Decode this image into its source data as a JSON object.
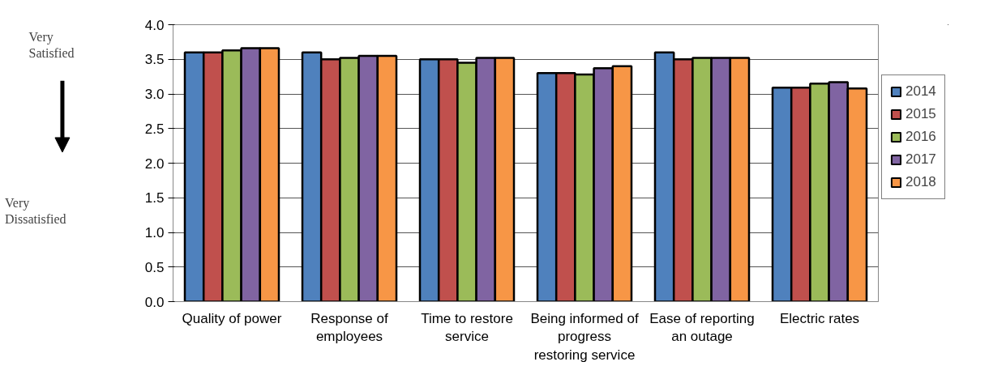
{
  "chart_data": {
    "type": "bar",
    "categories": [
      "Quality of power",
      "Response of employees",
      "Time to restore service",
      "Being informed of progress restoring service",
      "Ease of reporting an outage",
      "Electric rates"
    ],
    "series": [
      {
        "name": "2014",
        "color": "#4f81bd",
        "values": [
          3.6,
          3.6,
          3.5,
          3.3,
          3.6,
          3.09
        ]
      },
      {
        "name": "2015",
        "color": "#c0504d",
        "values": [
          3.6,
          3.5,
          3.5,
          3.3,
          3.5,
          3.09
        ]
      },
      {
        "name": "2016",
        "color": "#9bbb59",
        "values": [
          3.63,
          3.52,
          3.45,
          3.28,
          3.52,
          3.15
        ]
      },
      {
        "name": "2017",
        "color": "#8064a2",
        "values": [
          3.66,
          3.55,
          3.52,
          3.37,
          3.52,
          3.17
        ]
      },
      {
        "name": "2018",
        "color": "#f79646",
        "values": [
          3.66,
          3.55,
          3.52,
          3.4,
          3.52,
          3.08
        ]
      }
    ],
    "ylim": [
      0,
      4.0
    ],
    "yticks": [
      {
        "value": 0,
        "label": "0.0"
      },
      {
        "value": 0.5,
        "label": "0.5"
      },
      {
        "value": 1,
        "label": "1.0"
      },
      {
        "value": 1.5,
        "label": "1.5"
      },
      {
        "value": 2,
        "label": "2.0"
      },
      {
        "value": 2.5,
        "label": "2.5"
      },
      {
        "value": 3,
        "label": "3.0"
      },
      {
        "value": 3.5,
        "label": "3.5"
      },
      {
        "value": 4,
        "label": "4.0"
      }
    ],
    "grid": "y",
    "legend": "right",
    "annotations": [
      "Very Satisfied",
      "Very Dissatisfied"
    ]
  }
}
